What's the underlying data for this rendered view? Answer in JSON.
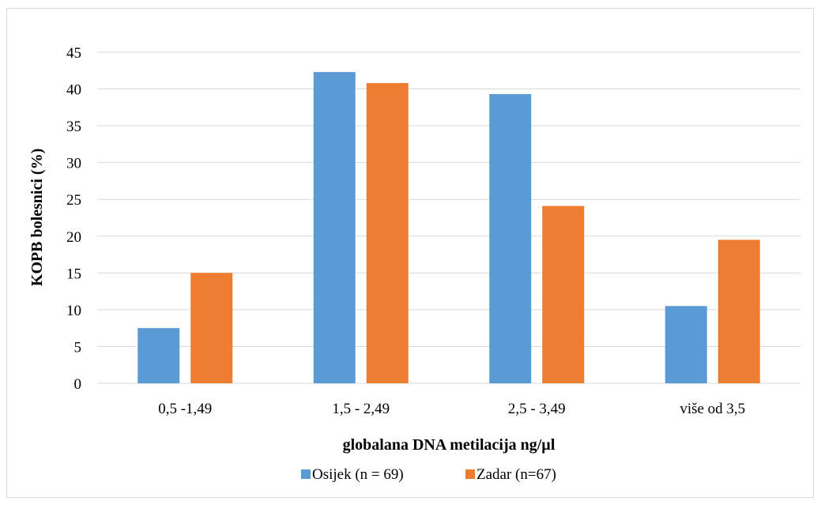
{
  "chart_data": {
    "type": "bar",
    "title": "",
    "xlabel": "globalana DNA metilacija ng/µl",
    "ylabel": "KOPB bolesnici (%)",
    "categories": [
      "0,5 -1,49",
      "1,5 - 2,49",
      "2,5 - 3,49",
      "više od 3,5"
    ],
    "series": [
      {
        "name": "Osijek (n = 69)",
        "color": "#5b9bd5",
        "values": [
          7.5,
          42.3,
          39.3,
          10.5
        ]
      },
      {
        "name": "Zadar (n=67)",
        "color": "#ed7d31",
        "values": [
          15.0,
          40.8,
          24.1,
          19.5
        ]
      }
    ],
    "ylim": [
      0,
      45
    ],
    "yticks": [
      0,
      5,
      10,
      15,
      20,
      25,
      30,
      35,
      40,
      45
    ],
    "grid": true,
    "legend_position": "bottom"
  }
}
